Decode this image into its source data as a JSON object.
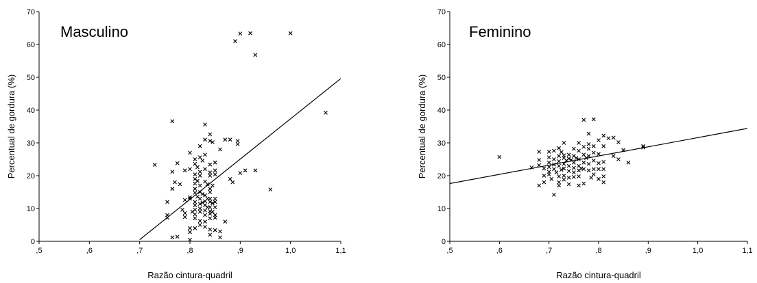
{
  "chart_data": [
    {
      "type": "scatter",
      "title": "Masculino",
      "xlabel": "Razão cintura-quadril",
      "ylabel": "Percentual de gordura (%)",
      "xlim": [
        0.5,
        1.1
      ],
      "ylim": [
        0,
        70
      ],
      "x_tick_values": [
        0.5,
        0.6,
        0.7,
        0.8,
        0.9,
        1.0,
        1.1
      ],
      "x_tick_labels": [
        ",5",
        ",6",
        ",7",
        ",8",
        ",9",
        "1,0",
        "1,1"
      ],
      "y_tick_values": [
        0,
        10,
        20,
        30,
        40,
        50,
        60,
        70
      ],
      "y_tick_labels": [
        "0",
        "10",
        "20",
        "30",
        "40",
        "50",
        "60",
        "70"
      ],
      "marker": "x",
      "grid": false,
      "points": [
        [
          0.73,
          23.3
        ],
        [
          0.755,
          12.0
        ],
        [
          0.755,
          8.0
        ],
        [
          0.755,
          7.2
        ],
        [
          0.765,
          36.6
        ],
        [
          0.765,
          21.2
        ],
        [
          0.765,
          16.0
        ],
        [
          0.765,
          1.2
        ],
        [
          0.77,
          18.0
        ],
        [
          0.775,
          23.8
        ],
        [
          0.775,
          1.4
        ],
        [
          0.78,
          17.4
        ],
        [
          0.785,
          9.6
        ],
        [
          0.79,
          21.6
        ],
        [
          0.79,
          12.6
        ],
        [
          0.79,
          8.6
        ],
        [
          0.79,
          7.4
        ],
        [
          0.8,
          27.0
        ],
        [
          0.8,
          22.0
        ],
        [
          0.8,
          13.4
        ],
        [
          0.8,
          13.0
        ],
        [
          0.8,
          4.0
        ],
        [
          0.8,
          2.8
        ],
        [
          0.8,
          0.5
        ],
        [
          0.805,
          9.0
        ],
        [
          0.81,
          25.0
        ],
        [
          0.81,
          23.6
        ],
        [
          0.81,
          20.4
        ],
        [
          0.81,
          19.0
        ],
        [
          0.81,
          17.6
        ],
        [
          0.81,
          16.0
        ],
        [
          0.81,
          14.8
        ],
        [
          0.81,
          12.0
        ],
        [
          0.81,
          11.0
        ],
        [
          0.81,
          9.6
        ],
        [
          0.81,
          8.2
        ],
        [
          0.81,
          7.0
        ],
        [
          0.81,
          4.0
        ],
        [
          0.815,
          22.6
        ],
        [
          0.815,
          18.4
        ],
        [
          0.815,
          13.6
        ],
        [
          0.82,
          29.0
        ],
        [
          0.82,
          25.6
        ],
        [
          0.82,
          21.2
        ],
        [
          0.82,
          20.0
        ],
        [
          0.82,
          17.0
        ],
        [
          0.82,
          15.0
        ],
        [
          0.82,
          13.0
        ],
        [
          0.82,
          11.4
        ],
        [
          0.82,
          10.0
        ],
        [
          0.82,
          9.0
        ],
        [
          0.82,
          6.2
        ],
        [
          0.82,
          5.0
        ],
        [
          0.825,
          24.6
        ],
        [
          0.825,
          14.4
        ],
        [
          0.825,
          11.8
        ],
        [
          0.83,
          35.6
        ],
        [
          0.83,
          31.0
        ],
        [
          0.83,
          26.4
        ],
        [
          0.83,
          22.0
        ],
        [
          0.83,
          18.2
        ],
        [
          0.83,
          14.0
        ],
        [
          0.83,
          12.2
        ],
        [
          0.83,
          11.0
        ],
        [
          0.83,
          9.4
        ],
        [
          0.83,
          8.0
        ],
        [
          0.83,
          6.0
        ],
        [
          0.83,
          4.4
        ],
        [
          0.835,
          17.4
        ],
        [
          0.835,
          13.0
        ],
        [
          0.835,
          10.4
        ],
        [
          0.84,
          32.6
        ],
        [
          0.84,
          30.6
        ],
        [
          0.84,
          23.4
        ],
        [
          0.84,
          21.0
        ],
        [
          0.84,
          20.0
        ],
        [
          0.84,
          16.0
        ],
        [
          0.84,
          15.0
        ],
        [
          0.84,
          13.0
        ],
        [
          0.84,
          12.0
        ],
        [
          0.84,
          10.4
        ],
        [
          0.84,
          9.2
        ],
        [
          0.84,
          8.4
        ],
        [
          0.84,
          7.0
        ],
        [
          0.84,
          3.6
        ],
        [
          0.84,
          2.0
        ],
        [
          0.845,
          30.2
        ],
        [
          0.845,
          17.0
        ],
        [
          0.845,
          11.6
        ],
        [
          0.845,
          9.0
        ],
        [
          0.85,
          24.0
        ],
        [
          0.85,
          21.6
        ],
        [
          0.85,
          20.4
        ],
        [
          0.85,
          13.0
        ],
        [
          0.85,
          12.0
        ],
        [
          0.85,
          10.4
        ],
        [
          0.85,
          8.0
        ],
        [
          0.85,
          7.2
        ],
        [
          0.85,
          3.4
        ],
        [
          0.86,
          28.0
        ],
        [
          0.86,
          3.0
        ],
        [
          0.86,
          1.2
        ],
        [
          0.87,
          31.0
        ],
        [
          0.87,
          6.0
        ],
        [
          0.88,
          31.0
        ],
        [
          0.88,
          19.0
        ],
        [
          0.885,
          18.0
        ],
        [
          0.89,
          61.0
        ],
        [
          0.895,
          30.6
        ],
        [
          0.895,
          29.6
        ],
        [
          0.9,
          63.3
        ],
        [
          0.9,
          20.8
        ],
        [
          0.91,
          21.6
        ],
        [
          0.92,
          63.4
        ],
        [
          0.93,
          56.8
        ],
        [
          0.93,
          21.6
        ],
        [
          0.96,
          15.8
        ],
        [
          1.0,
          63.4
        ],
        [
          1.07,
          39.2
        ]
      ],
      "trendline": {
        "x": [
          0.7,
          1.1
        ],
        "y": [
          0.5,
          49.6
        ]
      }
    },
    {
      "type": "scatter",
      "title": "Feminino",
      "xlabel": "Razão cintura-quadril",
      "ylabel": "Percentual de gordura (%)",
      "xlim": [
        0.5,
        1.1
      ],
      "ylim": [
        0,
        70
      ],
      "x_tick_values": [
        0.5,
        0.6,
        0.7,
        0.8,
        0.9,
        1.0,
        1.1
      ],
      "x_tick_labels": [
        ",5",
        ",6",
        ",7",
        ",8",
        ",9",
        "1,0",
        "1,1"
      ],
      "y_tick_values": [
        0,
        10,
        20,
        30,
        40,
        50,
        60,
        70
      ],
      "y_tick_labels": [
        "0",
        "10",
        "20",
        "30",
        "40",
        "50",
        "60",
        "70"
      ],
      "marker": "x",
      "grid": false,
      "points": [
        [
          0.6,
          25.7
        ],
        [
          0.665,
          22.5
        ],
        [
          0.68,
          27.3
        ],
        [
          0.68,
          24.8
        ],
        [
          0.68,
          23.2
        ],
        [
          0.68,
          17.0
        ],
        [
          0.69,
          22.2
        ],
        [
          0.69,
          20.0
        ],
        [
          0.69,
          18.0
        ],
        [
          0.7,
          27.3
        ],
        [
          0.7,
          25.6
        ],
        [
          0.7,
          24.0
        ],
        [
          0.7,
          22.6
        ],
        [
          0.7,
          21.2
        ],
        [
          0.7,
          20.4
        ],
        [
          0.705,
          19.0
        ],
        [
          0.71,
          27.6
        ],
        [
          0.71,
          25.0
        ],
        [
          0.71,
          23.4
        ],
        [
          0.71,
          22.0
        ],
        [
          0.71,
          14.2
        ],
        [
          0.715,
          21.0
        ],
        [
          0.72,
          28.4
        ],
        [
          0.72,
          26.0
        ],
        [
          0.72,
          24.4
        ],
        [
          0.72,
          23.0
        ],
        [
          0.72,
          19.8
        ],
        [
          0.72,
          18.0
        ],
        [
          0.72,
          17.0
        ],
        [
          0.725,
          27.2
        ],
        [
          0.725,
          21.8
        ],
        [
          0.73,
          30.0
        ],
        [
          0.73,
          26.2
        ],
        [
          0.73,
          25.4
        ],
        [
          0.73,
          23.6
        ],
        [
          0.73,
          22.2
        ],
        [
          0.73,
          20.0
        ],
        [
          0.73,
          18.8
        ],
        [
          0.735,
          24.6
        ],
        [
          0.74,
          26.4
        ],
        [
          0.74,
          25.2
        ],
        [
          0.74,
          23.0
        ],
        [
          0.74,
          21.4
        ],
        [
          0.74,
          19.4
        ],
        [
          0.74,
          17.4
        ],
        [
          0.745,
          24.8
        ],
        [
          0.75,
          28.2
        ],
        [
          0.75,
          26.0
        ],
        [
          0.75,
          24.0
        ],
        [
          0.75,
          22.4
        ],
        [
          0.75,
          21.0
        ],
        [
          0.75,
          19.6
        ],
        [
          0.755,
          25.4
        ],
        [
          0.76,
          30.0
        ],
        [
          0.76,
          27.6
        ],
        [
          0.76,
          25.0
        ],
        [
          0.76,
          23.0
        ],
        [
          0.76,
          21.6
        ],
        [
          0.76,
          19.8
        ],
        [
          0.76,
          17.0
        ],
        [
          0.765,
          22.2
        ],
        [
          0.77,
          37.0
        ],
        [
          0.77,
          28.8
        ],
        [
          0.77,
          26.4
        ],
        [
          0.77,
          24.0
        ],
        [
          0.77,
          22.0
        ],
        [
          0.77,
          17.6
        ],
        [
          0.775,
          25.4
        ],
        [
          0.78,
          32.8
        ],
        [
          0.78,
          29.6
        ],
        [
          0.78,
          28.2
        ],
        [
          0.78,
          26.0
        ],
        [
          0.78,
          23.6
        ],
        [
          0.78,
          21.6
        ],
        [
          0.785,
          19.4
        ],
        [
          0.79,
          37.2
        ],
        [
          0.79,
          29.0
        ],
        [
          0.79,
          27.0
        ],
        [
          0.79,
          24.6
        ],
        [
          0.79,
          22.0
        ],
        [
          0.79,
          20.4
        ],
        [
          0.8,
          30.8
        ],
        [
          0.8,
          26.6
        ],
        [
          0.8,
          23.8
        ],
        [
          0.8,
          22.0
        ],
        [
          0.8,
          19.0
        ],
        [
          0.81,
          32.2
        ],
        [
          0.81,
          29.0
        ],
        [
          0.81,
          24.2
        ],
        [
          0.81,
          22.0
        ],
        [
          0.81,
          19.8
        ],
        [
          0.81,
          18.0
        ],
        [
          0.82,
          31.4
        ],
        [
          0.83,
          31.6
        ],
        [
          0.83,
          26.0
        ],
        [
          0.84,
          30.2
        ],
        [
          0.84,
          25.0
        ],
        [
          0.85,
          27.8
        ],
        [
          0.86,
          24.0
        ],
        [
          0.89,
          29.0
        ],
        [
          0.89,
          28.6
        ]
      ],
      "trendline": {
        "x": [
          0.5,
          1.1
        ],
        "y": [
          17.6,
          34.4
        ]
      }
    }
  ]
}
